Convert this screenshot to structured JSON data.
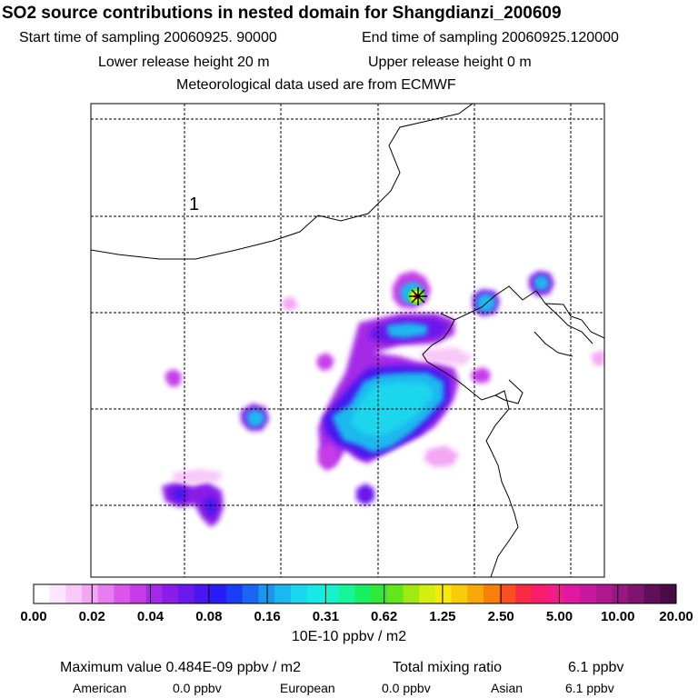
{
  "header": {
    "title": "SO2 source contributions in nested domain for Shangdianzi_200609",
    "start_label": "Start time of sampling 20060925. 90000",
    "end_label": "End time of sampling 20060925.120000",
    "lower_label": "Lower release height   20 m",
    "upper_label": "Upper release height    0 m",
    "met_label": "Meteorological data used are from ECMWF"
  },
  "map": {
    "grid_label": "1",
    "marker_icon": "source-star-icon",
    "colors": {
      "background": "#ffffff",
      "coast": "#000000",
      "grid": "#000000"
    }
  },
  "chart_data": {
    "type": "heatmap",
    "title": "SO2 source contributions in nested domain for Shangdianzi_200609",
    "colorbar": {
      "ticks": [
        "0.00",
        "0.02",
        "0.04",
        "0.08",
        "0.16",
        "0.31",
        "0.62",
        "1.25",
        "2.50",
        "5.00",
        "10.00",
        "20.00"
      ],
      "colors": [
        "#ffffff",
        "#fde6fd",
        "#f8c8f8",
        "#f2a6f4",
        "#e77ef0",
        "#db55ec",
        "#c63ce8",
        "#a52ae6",
        "#8a1ee8",
        "#6a18ec",
        "#4a16f0",
        "#2a1cf6",
        "#1a3ef4",
        "#1a66f0",
        "#1a96ee",
        "#1ab8ee",
        "#1ad6ee",
        "#18e8e6",
        "#18f2cc",
        "#18f49a",
        "#18ee62",
        "#30e838",
        "#62e61c",
        "#a0ea14",
        "#d4ee10",
        "#f6ea0a",
        "#f8cc08",
        "#f8a808",
        "#f88008",
        "#f85020",
        "#f82a44",
        "#f81c6a",
        "#f01c8a",
        "#e01aa0",
        "#c8189e",
        "#b01890",
        "#981880",
        "#7c1470",
        "#601058",
        "#4a0c44"
      ],
      "unit_label": "10E-10 ppbv / m2"
    },
    "source_location": "Shangdianzi"
  },
  "stats": {
    "max_label": "Maximum value  0.484E-09 ppbv / m2",
    "total_label": "Total mixing ratio",
    "total_value": "6.1 ppbv",
    "american_label": "American",
    "american_value": "0.0 ppbv",
    "european_label": "European",
    "european_value": "0.0 ppbv",
    "asian_label": "Asian",
    "asian_value": "6.1 ppbv"
  }
}
